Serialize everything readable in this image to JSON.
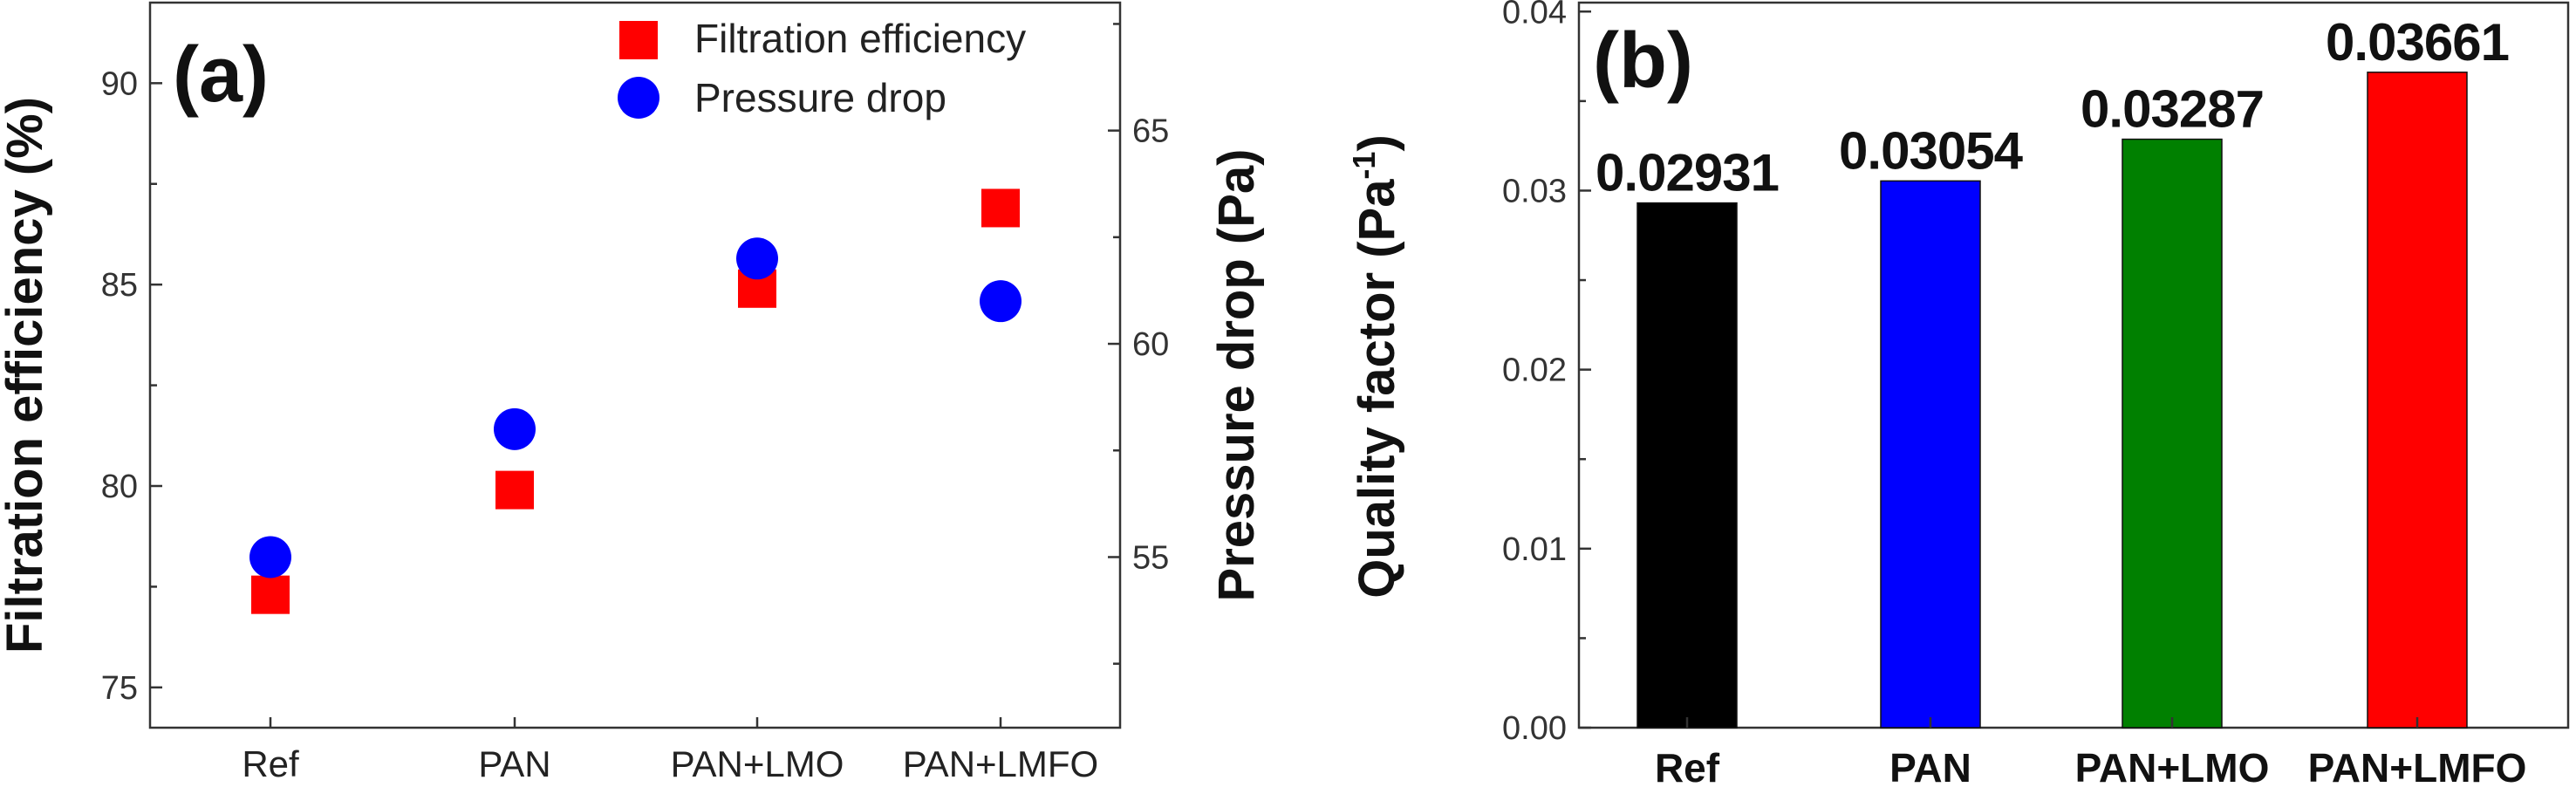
{
  "chart_data": [
    {
      "type": "scatter",
      "panel_label": "(a)",
      "categories": [
        "Ref",
        "PAN",
        "PAN+LMO",
        "PAN+LMFO"
      ],
      "ylabel": "Filtration efficiency (%)",
      "y2label": "Pressure drop (Pa)",
      "ylim": [
        74,
        92
      ],
      "y2lim": [
        51,
        68
      ],
      "yticks": [
        "75",
        "80",
        "85",
        "90"
      ],
      "y2ticks": [
        "55",
        "60",
        "65"
      ],
      "legend_position": "top-right",
      "grid": false,
      "series": [
        {
          "name": "Filtration efficiency",
          "axis": "left",
          "marker": "square",
          "color": "#ff0000",
          "values": [
            77.3,
            79.9,
            84.9,
            86.9
          ]
        },
        {
          "name": "Pressure drop",
          "axis": "right",
          "marker": "circle",
          "color": "#0000ff",
          "values": [
            55.0,
            58.0,
            62.0,
            61.0
          ]
        }
      ]
    },
    {
      "type": "bar",
      "panel_label": "(b)",
      "categories": [
        "Ref",
        "PAN",
        "PAN+LMO",
        "PAN+LMFO"
      ],
      "values": [
        0.02931,
        0.03054,
        0.03287,
        0.03661
      ],
      "value_labels": [
        "0.02931",
        "0.03054",
        "0.03287",
        "0.03661"
      ],
      "colors": [
        "#000000",
        "#0000ff",
        "#008000",
        "#ff0000"
      ],
      "ylabel": "Quality factor (Pa",
      "ylabel_superscript": "-1",
      "ylabel_suffix": ")",
      "ylim": [
        0,
        0.0405
      ],
      "yticks": [
        "0.00",
        "0.01",
        "0.02",
        "0.03",
        "0.04"
      ],
      "grid": false
    }
  ]
}
